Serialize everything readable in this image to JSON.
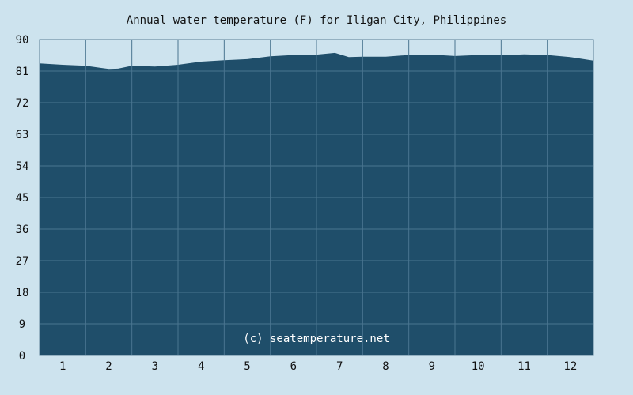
{
  "chart_data": {
    "type": "area",
    "title": "Annual water temperature (F) for Iligan City, Philippines",
    "xlabel": "",
    "ylabel": "",
    "x_ticks": [
      "1",
      "2",
      "3",
      "4",
      "5",
      "6",
      "7",
      "8",
      "9",
      "10",
      "11",
      "12"
    ],
    "y_ticks": [
      0,
      9,
      18,
      27,
      36,
      45,
      54,
      63,
      72,
      81,
      90
    ],
    "xlim": [
      0.5,
      12.5
    ],
    "ylim": [
      0,
      90
    ],
    "grid": true,
    "watermark": "(c) seatemperature.net",
    "colors": {
      "background": "#cde3ee",
      "fill": "#1f4e6a",
      "grid": "#4a7590",
      "frame": "#5a7f96"
    },
    "series": [
      {
        "x": [
          0.5,
          1.0,
          1.5,
          2.0,
          2.2,
          2.5,
          3.0,
          3.5,
          4.0,
          4.5,
          5.0,
          5.5,
          6.0,
          6.5,
          6.9,
          7.2,
          7.5,
          8.0,
          8.5,
          9.0,
          9.5,
          10.0,
          10.5,
          11.0,
          11.5,
          12.0,
          12.5
        ],
        "values": [
          83.2,
          82.8,
          82.5,
          81.6,
          81.7,
          82.5,
          82.3,
          82.8,
          83.7,
          84.1,
          84.4,
          85.2,
          85.6,
          85.7,
          86.2,
          85.0,
          85.1,
          85.1,
          85.6,
          85.7,
          85.3,
          85.6,
          85.5,
          85.8,
          85.6,
          85.0,
          84.0
        ]
      }
    ]
  }
}
